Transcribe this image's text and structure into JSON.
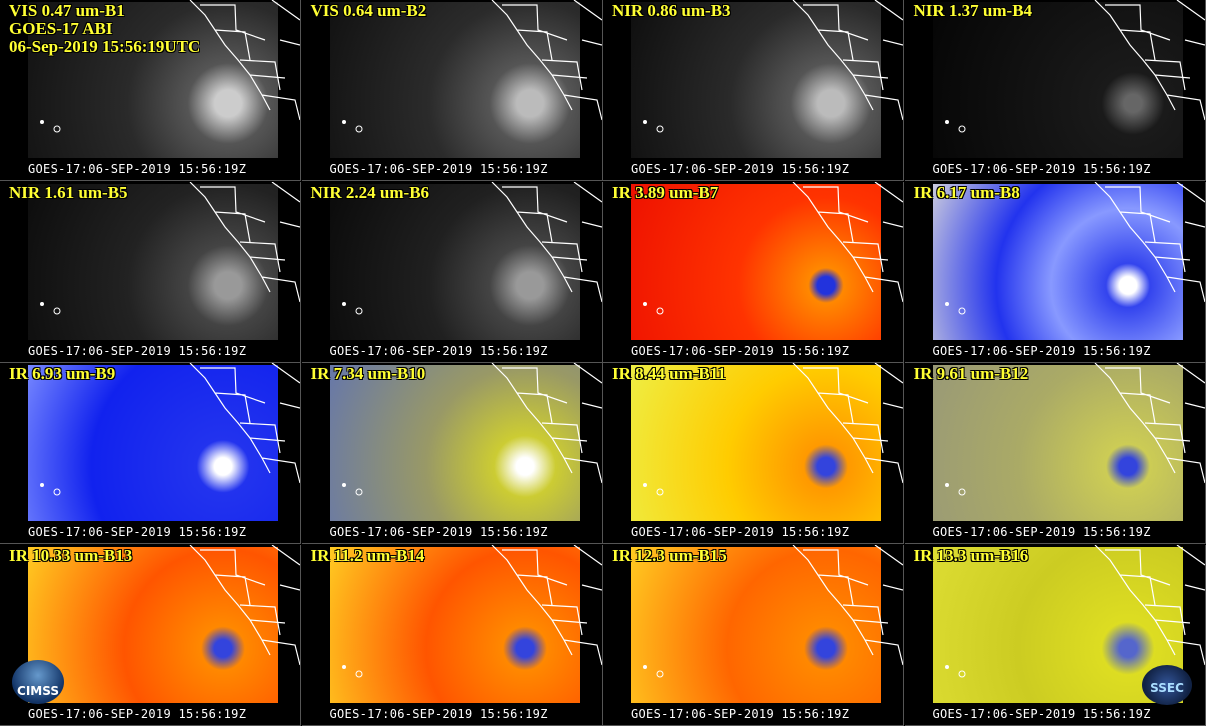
{
  "header": {
    "satellite": "GOES-17 ABI",
    "datetime": "06-Sep-2019 15:56:19UTC"
  },
  "panels": [
    {
      "label": "VIS 0.47 um-B1",
      "footer": "GOES-17:06-SEP-2019 15:56:19Z"
    },
    {
      "label": "VIS 0.64 um-B2",
      "footer": "GOES-17:06-SEP-2019 15:56:19Z"
    },
    {
      "label": "NIR 0.86 um-B3",
      "footer": "GOES-17:06-SEP-2019 15:56:19Z"
    },
    {
      "label": "NIR 1.37 um-B4",
      "footer": "GOES-17:06-SEP-2019 15:56:19Z"
    },
    {
      "label": "NIR 1.61 um-B5",
      "footer": "GOES-17:06-SEP-2019 15:56:19Z"
    },
    {
      "label": "NIR 2.24 um-B6",
      "footer": "GOES-17:06-SEP-2019 15:56:19Z"
    },
    {
      "label": "IR 3.89 um-B7",
      "footer": "GOES-17:06-SEP-2019 15:56:19Z"
    },
    {
      "label": "IR 6.17 um-B8",
      "footer": "GOES-17:06-SEP-2019 15:56:19Z"
    },
    {
      "label": "IR 6.93 um-B9",
      "footer": "GOES-17:06-SEP-2019 15:56:19Z"
    },
    {
      "label": "IR 7.34 um-B10",
      "footer": "GOES-17:06-SEP-2019 15:56:19Z"
    },
    {
      "label": "IR 8.44 um-B11",
      "footer": "GOES-17:06-SEP-2019 15:56:19Z"
    },
    {
      "label": "IR 9.61 um-B12",
      "footer": "GOES-17:06-SEP-2019 15:56:19Z"
    },
    {
      "label": "IR 10.33 um-B13",
      "footer": "GOES-17:06-SEP-2019 15:56:19Z"
    },
    {
      "label": "IR 11.2 um-B14",
      "footer": "GOES-17:06-SEP-2019 15:56:19Z"
    },
    {
      "label": "IR 12.3 um-B15",
      "footer": "GOES-17:06-SEP-2019 15:56:19Z"
    },
    {
      "label": "IR 13.3 um-B16",
      "footer": "GOES-17:06-SEP-2019 15:56:19Z"
    }
  ],
  "logos": [
    "CIMSS",
    "SSEC"
  ]
}
